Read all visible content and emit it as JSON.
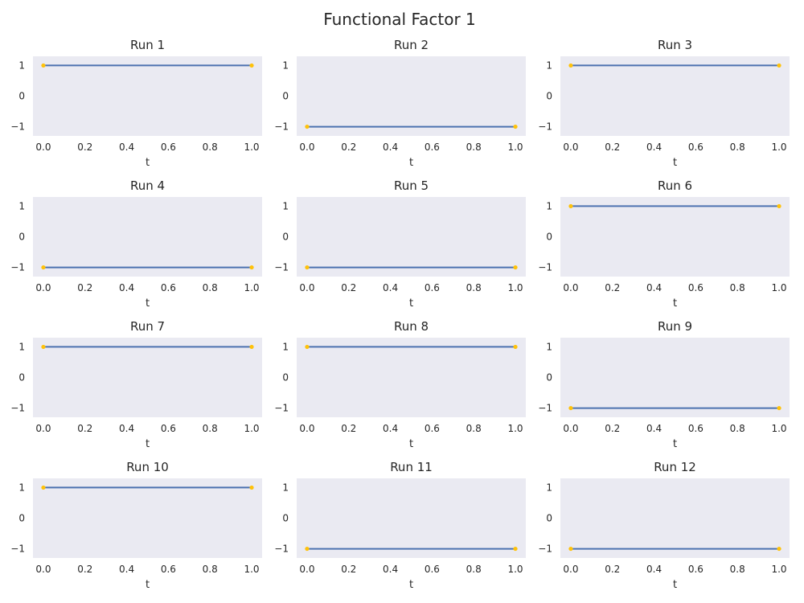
{
  "figure": {
    "title": "Functional Factor 1"
  },
  "colors": {
    "plot_background": "#EAEAF2",
    "line": "#4C72B0",
    "marker": "#FFC20A",
    "text": "#262626"
  },
  "chart_data": [
    {
      "type": "line",
      "title": "Run 1",
      "xlabel": "t",
      "ylabel": "",
      "x": [
        0.0,
        1.0
      ],
      "y": [
        1,
        1
      ],
      "xlim": [
        -0.05,
        1.05
      ],
      "ylim": [
        -1.3,
        1.3
      ],
      "xticks": [
        0.0,
        0.2,
        0.4,
        0.6,
        0.8,
        1.0
      ],
      "xtick_labels": [
        "0.0",
        "0.2",
        "0.4",
        "0.6",
        "0.8",
        "1.0"
      ],
      "yticks": [
        1,
        0,
        -1
      ],
      "ytick_labels": [
        "1",
        "0",
        "−1"
      ],
      "grid": false
    },
    {
      "type": "line",
      "title": "Run 2",
      "xlabel": "t",
      "ylabel": "",
      "x": [
        0.0,
        1.0
      ],
      "y": [
        -1,
        -1
      ],
      "xlim": [
        -0.05,
        1.05
      ],
      "ylim": [
        -1.3,
        1.3
      ],
      "xticks": [
        0.0,
        0.2,
        0.4,
        0.6,
        0.8,
        1.0
      ],
      "xtick_labels": [
        "0.0",
        "0.2",
        "0.4",
        "0.6",
        "0.8",
        "1.0"
      ],
      "yticks": [
        1,
        0,
        -1
      ],
      "ytick_labels": [
        "1",
        "0",
        "−1"
      ],
      "grid": false
    },
    {
      "type": "line",
      "title": "Run 3",
      "xlabel": "t",
      "ylabel": "",
      "x": [
        0.0,
        1.0
      ],
      "y": [
        1,
        1
      ],
      "xlim": [
        -0.05,
        1.05
      ],
      "ylim": [
        -1.3,
        1.3
      ],
      "xticks": [
        0.0,
        0.2,
        0.4,
        0.6,
        0.8,
        1.0
      ],
      "xtick_labels": [
        "0.0",
        "0.2",
        "0.4",
        "0.6",
        "0.8",
        "1.0"
      ],
      "yticks": [
        1,
        0,
        -1
      ],
      "ytick_labels": [
        "1",
        "0",
        "−1"
      ],
      "grid": false
    },
    {
      "type": "line",
      "title": "Run 4",
      "xlabel": "t",
      "ylabel": "",
      "x": [
        0.0,
        1.0
      ],
      "y": [
        -1,
        -1
      ],
      "xlim": [
        -0.05,
        1.05
      ],
      "ylim": [
        -1.3,
        1.3
      ],
      "xticks": [
        0.0,
        0.2,
        0.4,
        0.6,
        0.8,
        1.0
      ],
      "xtick_labels": [
        "0.0",
        "0.2",
        "0.4",
        "0.6",
        "0.8",
        "1.0"
      ],
      "yticks": [
        1,
        0,
        -1
      ],
      "ytick_labels": [
        "1",
        "0",
        "−1"
      ],
      "grid": false
    },
    {
      "type": "line",
      "title": "Run 5",
      "xlabel": "t",
      "ylabel": "",
      "x": [
        0.0,
        1.0
      ],
      "y": [
        -1,
        -1
      ],
      "xlim": [
        -0.05,
        1.05
      ],
      "ylim": [
        -1.3,
        1.3
      ],
      "xticks": [
        0.0,
        0.2,
        0.4,
        0.6,
        0.8,
        1.0
      ],
      "xtick_labels": [
        "0.0",
        "0.2",
        "0.4",
        "0.6",
        "0.8",
        "1.0"
      ],
      "yticks": [
        1,
        0,
        -1
      ],
      "ytick_labels": [
        "1",
        "0",
        "−1"
      ],
      "grid": false
    },
    {
      "type": "line",
      "title": "Run 6",
      "xlabel": "t",
      "ylabel": "",
      "x": [
        0.0,
        1.0
      ],
      "y": [
        1,
        1
      ],
      "xlim": [
        -0.05,
        1.05
      ],
      "ylim": [
        -1.3,
        1.3
      ],
      "xticks": [
        0.0,
        0.2,
        0.4,
        0.6,
        0.8,
        1.0
      ],
      "xtick_labels": [
        "0.0",
        "0.2",
        "0.4",
        "0.6",
        "0.8",
        "1.0"
      ],
      "yticks": [
        1,
        0,
        -1
      ],
      "ytick_labels": [
        "1",
        "0",
        "−1"
      ],
      "grid": false
    },
    {
      "type": "line",
      "title": "Run 7",
      "xlabel": "t",
      "ylabel": "",
      "x": [
        0.0,
        1.0
      ],
      "y": [
        1,
        1
      ],
      "xlim": [
        -0.05,
        1.05
      ],
      "ylim": [
        -1.3,
        1.3
      ],
      "xticks": [
        0.0,
        0.2,
        0.4,
        0.6,
        0.8,
        1.0
      ],
      "xtick_labels": [
        "0.0",
        "0.2",
        "0.4",
        "0.6",
        "0.8",
        "1.0"
      ],
      "yticks": [
        1,
        0,
        -1
      ],
      "ytick_labels": [
        "1",
        "0",
        "−1"
      ],
      "grid": false
    },
    {
      "type": "line",
      "title": "Run 8",
      "xlabel": "t",
      "ylabel": "",
      "x": [
        0.0,
        1.0
      ],
      "y": [
        1,
        1
      ],
      "xlim": [
        -0.05,
        1.05
      ],
      "ylim": [
        -1.3,
        1.3
      ],
      "xticks": [
        0.0,
        0.2,
        0.4,
        0.6,
        0.8,
        1.0
      ],
      "xtick_labels": [
        "0.0",
        "0.2",
        "0.4",
        "0.6",
        "0.8",
        "1.0"
      ],
      "yticks": [
        1,
        0,
        -1
      ],
      "ytick_labels": [
        "1",
        "0",
        "−1"
      ],
      "grid": false
    },
    {
      "type": "line",
      "title": "Run 9",
      "xlabel": "t",
      "ylabel": "",
      "x": [
        0.0,
        1.0
      ],
      "y": [
        -1,
        -1
      ],
      "xlim": [
        -0.05,
        1.05
      ],
      "ylim": [
        -1.3,
        1.3
      ],
      "xticks": [
        0.0,
        0.2,
        0.4,
        0.6,
        0.8,
        1.0
      ],
      "xtick_labels": [
        "0.0",
        "0.2",
        "0.4",
        "0.6",
        "0.8",
        "1.0"
      ],
      "yticks": [
        1,
        0,
        -1
      ],
      "ytick_labels": [
        "1",
        "0",
        "−1"
      ],
      "grid": false
    },
    {
      "type": "line",
      "title": "Run 10",
      "xlabel": "t",
      "ylabel": "",
      "x": [
        0.0,
        1.0
      ],
      "y": [
        1,
        1
      ],
      "xlim": [
        -0.05,
        1.05
      ],
      "ylim": [
        -1.3,
        1.3
      ],
      "xticks": [
        0.0,
        0.2,
        0.4,
        0.6,
        0.8,
        1.0
      ],
      "xtick_labels": [
        "0.0",
        "0.2",
        "0.4",
        "0.6",
        "0.8",
        "1.0"
      ],
      "yticks": [
        1,
        0,
        -1
      ],
      "ytick_labels": [
        "1",
        "0",
        "−1"
      ],
      "grid": false
    },
    {
      "type": "line",
      "title": "Run 11",
      "xlabel": "t",
      "ylabel": "",
      "x": [
        0.0,
        1.0
      ],
      "y": [
        -1,
        -1
      ],
      "xlim": [
        -0.05,
        1.05
      ],
      "ylim": [
        -1.3,
        1.3
      ],
      "xticks": [
        0.0,
        0.2,
        0.4,
        0.6,
        0.8,
        1.0
      ],
      "xtick_labels": [
        "0.0",
        "0.2",
        "0.4",
        "0.6",
        "0.8",
        "1.0"
      ],
      "yticks": [
        1,
        0,
        -1
      ],
      "ytick_labels": [
        "1",
        "0",
        "−1"
      ],
      "grid": false
    },
    {
      "type": "line",
      "title": "Run 12",
      "xlabel": "t",
      "ylabel": "",
      "x": [
        0.0,
        1.0
      ],
      "y": [
        -1,
        -1
      ],
      "xlim": [
        -0.05,
        1.05
      ],
      "ylim": [
        -1.3,
        1.3
      ],
      "xticks": [
        0.0,
        0.2,
        0.4,
        0.6,
        0.8,
        1.0
      ],
      "xtick_labels": [
        "0.0",
        "0.2",
        "0.4",
        "0.6",
        "0.8",
        "1.0"
      ],
      "yticks": [
        1,
        0,
        -1
      ],
      "ytick_labels": [
        "1",
        "0",
        "−1"
      ],
      "grid": false
    }
  ]
}
